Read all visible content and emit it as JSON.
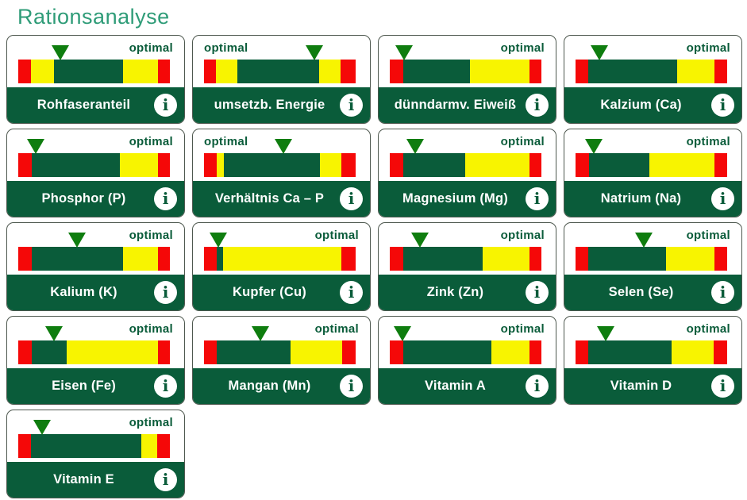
{
  "page": {
    "title": "Rationsanalyse"
  },
  "optimal_label": "optimal",
  "info_icon_glyph": "i",
  "colors": {
    "title": "#2F9C78",
    "green": "#0A5C3A",
    "bar_red": "#F50808",
    "bar_yellow": "#F8F400",
    "marker_green": "#0F7D0F"
  },
  "cards": [
    {
      "label": "Rohfaseranteil",
      "optimal_side": "right",
      "marker_pos_pct": 27.5,
      "segments": [
        {
          "color": "red",
          "width_pct": 8.5
        },
        {
          "color": "yellow",
          "width_pct": 15
        },
        {
          "color": "green",
          "width_pct": 45.5
        },
        {
          "color": "yellow",
          "width_pct": 23
        },
        {
          "color": "red",
          "width_pct": 8
        }
      ]
    },
    {
      "label": "umsetzb. Energie",
      "optimal_side": "left",
      "marker_pos_pct": 73,
      "segments": [
        {
          "color": "red",
          "width_pct": 8
        },
        {
          "color": "yellow",
          "width_pct": 14
        },
        {
          "color": "green",
          "width_pct": 54
        },
        {
          "color": "yellow",
          "width_pct": 14
        },
        {
          "color": "red",
          "width_pct": 10
        }
      ]
    },
    {
      "label": "dünndarmv. Eiweiß",
      "optimal_side": "right",
      "marker_pos_pct": 9.5,
      "segments": [
        {
          "color": "red",
          "width_pct": 9
        },
        {
          "color": "green",
          "width_pct": 44
        },
        {
          "color": "yellow",
          "width_pct": 39
        },
        {
          "color": "red",
          "width_pct": 8
        }
      ]
    },
    {
      "label": "Kalzium (Ca)",
      "optimal_side": "right",
      "marker_pos_pct": 15.5,
      "segments": [
        {
          "color": "red",
          "width_pct": 8.5
        },
        {
          "color": "green",
          "width_pct": 58.5
        },
        {
          "color": "yellow",
          "width_pct": 24.5
        },
        {
          "color": "red",
          "width_pct": 8.5
        }
      ]
    },
    {
      "label": "Phosphor (P)",
      "optimal_side": "right",
      "marker_pos_pct": 11.5,
      "segments": [
        {
          "color": "red",
          "width_pct": 9
        },
        {
          "color": "green",
          "width_pct": 58
        },
        {
          "color": "yellow",
          "width_pct": 25
        },
        {
          "color": "red",
          "width_pct": 8
        }
      ]
    },
    {
      "label": "Verhältnis Ca – P",
      "optimal_side": "left",
      "marker_pos_pct": 52.5,
      "segments": [
        {
          "color": "red",
          "width_pct": 8.5
        },
        {
          "color": "yellow",
          "width_pct": 4.5
        },
        {
          "color": "green",
          "width_pct": 63.5
        },
        {
          "color": "yellow",
          "width_pct": 14
        },
        {
          "color": "red",
          "width_pct": 9.5
        }
      ]
    },
    {
      "label": "Magnesium (Mg)",
      "optimal_side": "right",
      "marker_pos_pct": 17,
      "segments": [
        {
          "color": "red",
          "width_pct": 9
        },
        {
          "color": "green",
          "width_pct": 41
        },
        {
          "color": "yellow",
          "width_pct": 42
        },
        {
          "color": "red",
          "width_pct": 8
        }
      ]
    },
    {
      "label": "Natrium (Na)",
      "optimal_side": "right",
      "marker_pos_pct": 12,
      "segments": [
        {
          "color": "red",
          "width_pct": 9
        },
        {
          "color": "green",
          "width_pct": 39.5
        },
        {
          "color": "yellow",
          "width_pct": 43
        },
        {
          "color": "red",
          "width_pct": 8.5
        }
      ]
    },
    {
      "label": "Kalium (K)",
      "optimal_side": "right",
      "marker_pos_pct": 39,
      "segments": [
        {
          "color": "red",
          "width_pct": 9
        },
        {
          "color": "green",
          "width_pct": 60
        },
        {
          "color": "yellow",
          "width_pct": 23
        },
        {
          "color": "red",
          "width_pct": 8
        }
      ]
    },
    {
      "label": "Kupfer (Cu)",
      "optimal_side": "right",
      "marker_pos_pct": 9.5,
      "segments": [
        {
          "color": "red",
          "width_pct": 8.5
        },
        {
          "color": "green",
          "width_pct": 4
        },
        {
          "color": "yellow",
          "width_pct": 78
        },
        {
          "color": "red",
          "width_pct": 9.5
        }
      ]
    },
    {
      "label": "Zink (Zn)",
      "optimal_side": "right",
      "marker_pos_pct": 20,
      "segments": [
        {
          "color": "red",
          "width_pct": 9
        },
        {
          "color": "green",
          "width_pct": 52
        },
        {
          "color": "yellow",
          "width_pct": 31
        },
        {
          "color": "red",
          "width_pct": 8
        }
      ]
    },
    {
      "label": "Selen (Se)",
      "optimal_side": "right",
      "marker_pos_pct": 45,
      "segments": [
        {
          "color": "red",
          "width_pct": 8.5
        },
        {
          "color": "green",
          "width_pct": 51
        },
        {
          "color": "yellow",
          "width_pct": 32
        },
        {
          "color": "red",
          "width_pct": 8.5
        }
      ]
    },
    {
      "label": "Eisen (Fe)",
      "optimal_side": "right",
      "marker_pos_pct": 23.5,
      "segments": [
        {
          "color": "red",
          "width_pct": 9
        },
        {
          "color": "green",
          "width_pct": 23
        },
        {
          "color": "yellow",
          "width_pct": 60
        },
        {
          "color": "red",
          "width_pct": 8
        }
      ]
    },
    {
      "label": "Mangan (Mn)",
      "optimal_side": "right",
      "marker_pos_pct": 37,
      "segments": [
        {
          "color": "red",
          "width_pct": 8.5
        },
        {
          "color": "green",
          "width_pct": 48.5
        },
        {
          "color": "yellow",
          "width_pct": 34
        },
        {
          "color": "red",
          "width_pct": 9
        }
      ]
    },
    {
      "label": "Vitamin A",
      "optimal_side": "right",
      "marker_pos_pct": 8.5,
      "segments": [
        {
          "color": "red",
          "width_pct": 9
        },
        {
          "color": "green",
          "width_pct": 58
        },
        {
          "color": "yellow",
          "width_pct": 25
        },
        {
          "color": "red",
          "width_pct": 8
        }
      ]
    },
    {
      "label": "Vitamin D",
      "optimal_side": "right",
      "marker_pos_pct": 20,
      "segments": [
        {
          "color": "red",
          "width_pct": 8.5
        },
        {
          "color": "green",
          "width_pct": 55
        },
        {
          "color": "yellow",
          "width_pct": 27.5
        },
        {
          "color": "red",
          "width_pct": 9
        }
      ]
    },
    {
      "label": "Vitamin E",
      "optimal_side": "right",
      "marker_pos_pct": 15.5,
      "segments": [
        {
          "color": "red",
          "width_pct": 8.5
        },
        {
          "color": "green",
          "width_pct": 72.5
        },
        {
          "color": "yellow",
          "width_pct": 10.5
        },
        {
          "color": "red",
          "width_pct": 8.5
        }
      ]
    }
  ]
}
